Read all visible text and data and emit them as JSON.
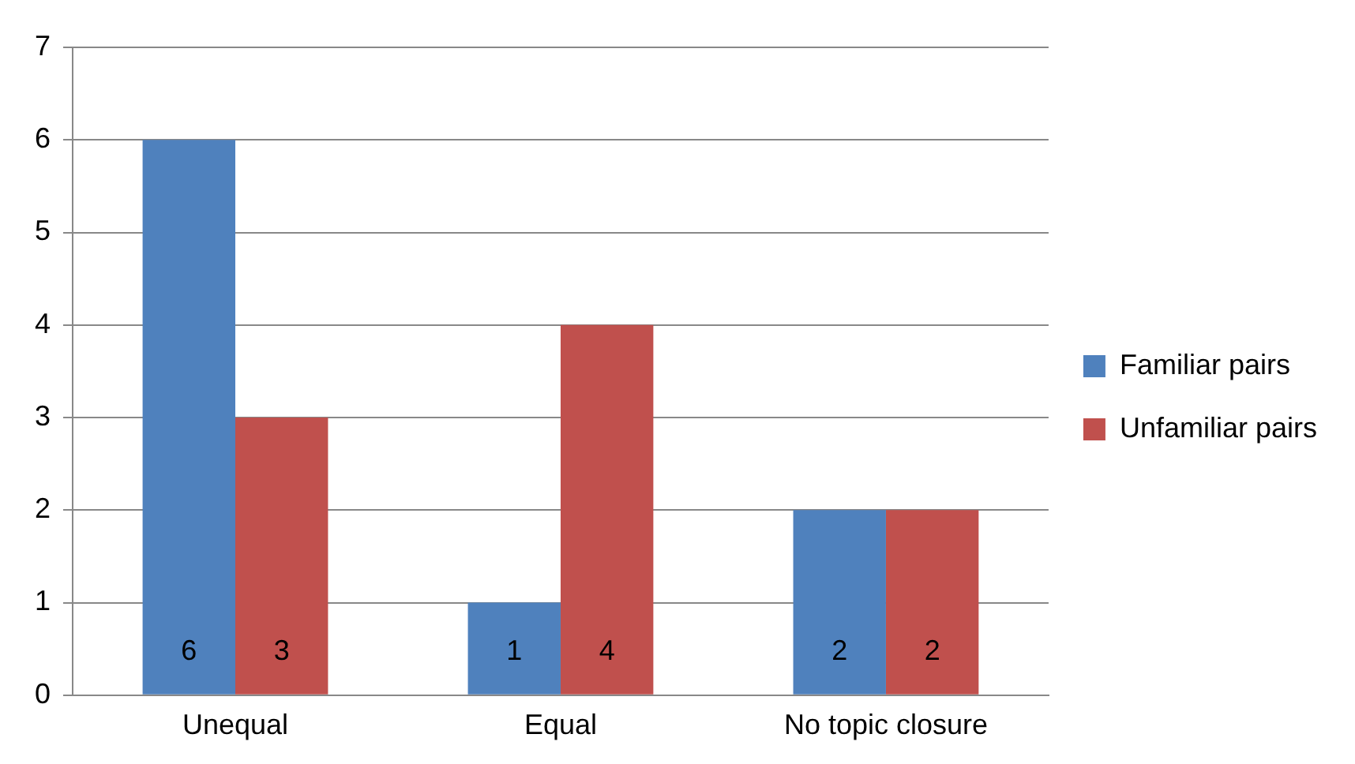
{
  "chart_data": {
    "type": "bar",
    "categories": [
      "Unequal",
      "Equal",
      "No topic closure"
    ],
    "series": [
      {
        "name": "Familiar pairs",
        "color": "#4f81bd",
        "values": [
          6,
          1,
          2
        ]
      },
      {
        "name": "Unfamiliar pairs",
        "color": "#c0504d",
        "values": [
          3,
          4,
          2
        ]
      }
    ],
    "ylim": [
      0,
      7
    ],
    "yticks": [
      0,
      1,
      2,
      3,
      4,
      5,
      6,
      7
    ],
    "grid": "y",
    "legend": "right",
    "data_labels": true
  }
}
